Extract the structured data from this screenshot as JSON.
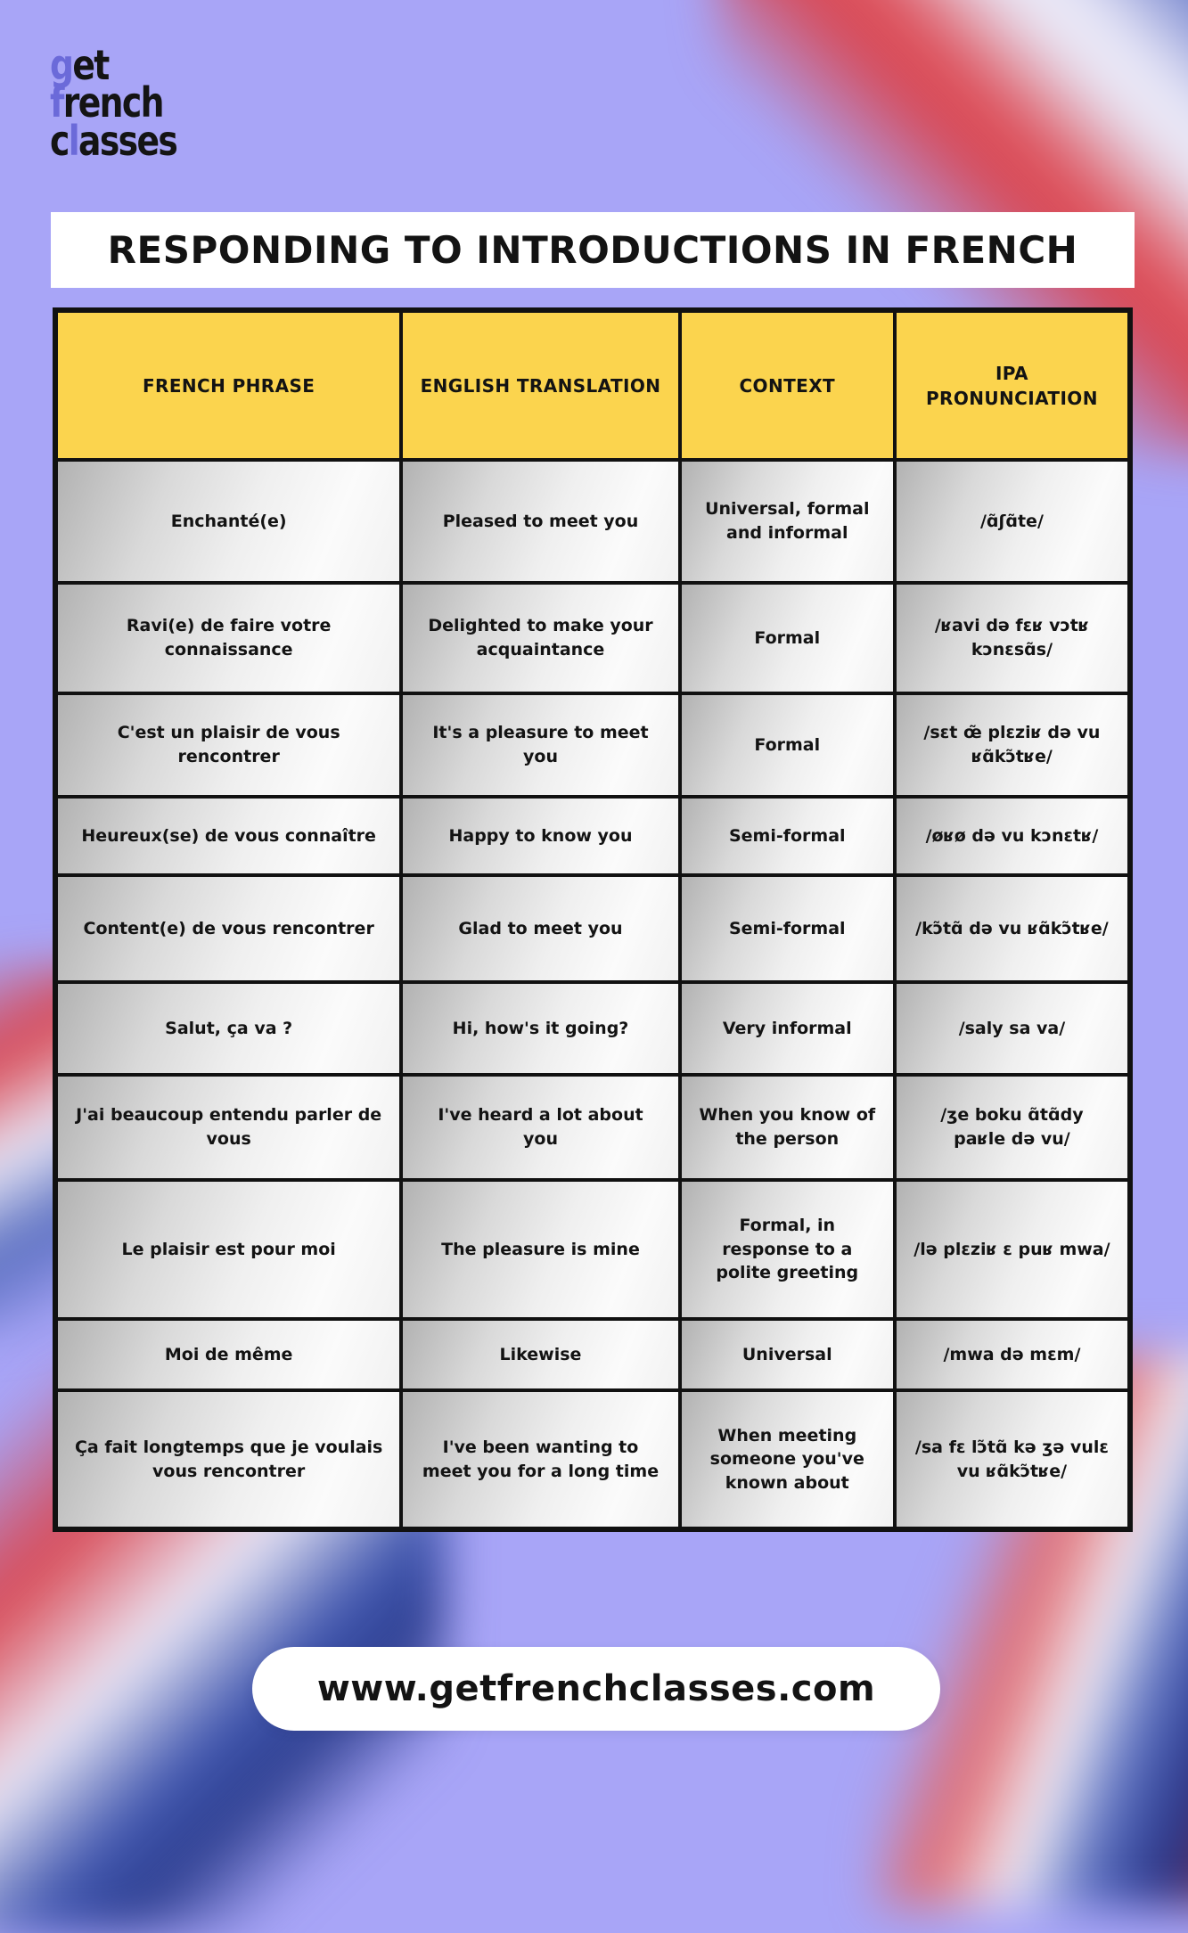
{
  "logo": {
    "line1_accent": "g",
    "line1_rest": "et",
    "line2_accent": "f",
    "line2_rest": "rench",
    "line3_pre": "c",
    "line3_accent": "l",
    "line3_rest": "asses"
  },
  "title": "RESPONDING TO INTRODUCTIONS IN FRENCH",
  "table": {
    "columns": [
      "FRENCH PHRASE",
      "ENGLISH TRANSLATION",
      "CONTEXT",
      "IPA PRONUNCIATION"
    ],
    "rows": [
      {
        "french": "Enchanté(e)",
        "english": "Pleased to meet you",
        "context": "Universal, formal and informal",
        "ipa": "/ɑ̃ʃɑ̃te/"
      },
      {
        "french": "Ravi(e) de faire votre connaissance",
        "english": "Delighted to make your acquaintance",
        "context": "Formal",
        "ipa": "/ʁavi də fɛʁ vɔtʁ kɔnɛsɑ̃s/"
      },
      {
        "french": "C'est un plaisir de vous rencontrer",
        "english": "It's a pleasure to meet you",
        "context": "Formal",
        "ipa": "/sɛt œ̃ plɛziʁ də vu ʁɑ̃kɔ̃tʁe/"
      },
      {
        "french": "Heureux(se) de vous connaître",
        "english": "Happy to know you",
        "context": "Semi-formal",
        "ipa": "/øʁø də vu kɔnɛtʁ/"
      },
      {
        "french": "Content(e) de vous rencontrer",
        "english": "Glad to meet you",
        "context": "Semi-formal",
        "ipa": "/kɔ̃tɑ̃ də vu ʁɑ̃kɔ̃tʁe/"
      },
      {
        "french": "Salut, ça va ?",
        "english": "Hi, how's it going?",
        "context": "Very informal",
        "ipa": "/saly sa va/"
      },
      {
        "french": "J'ai beaucoup entendu parler de vous",
        "english": "I've heard a lot about you",
        "context": "When you know of the person",
        "ipa": "/ʒe boku ɑ̃tɑ̃dy paʁle də vu/"
      },
      {
        "french": "Le plaisir est pour moi",
        "english": "The pleasure is mine",
        "context": "Formal, in response to a polite greeting",
        "ipa": "/lə plɛziʁ ɛ puʁ mwa/"
      },
      {
        "french": "Moi de même",
        "english": "Likewise",
        "context": "Universal",
        "ipa": "/mwa də mɛm/"
      },
      {
        "french": "Ça fait longtemps que je voulais vous rencontrer",
        "english": "I've been wanting to meet you for a long time",
        "context": "When meeting someone you've known about",
        "ipa": "/sa fɛ lɔ̃tɑ̃ kə ʒə vulɛ vu ʁɑ̃kɔ̃tʁe/"
      }
    ]
  },
  "footer": {
    "url": "www.getfrenchclasses.com"
  },
  "colors": {
    "background": "#a8a5f7",
    "header_yellow": "#fbd44e",
    "logo_accent": "#6b6ad9",
    "border_black": "#111111",
    "flag_blue": "#2e459e",
    "flag_white": "#eceaf8",
    "flag_red": "#d84853"
  }
}
